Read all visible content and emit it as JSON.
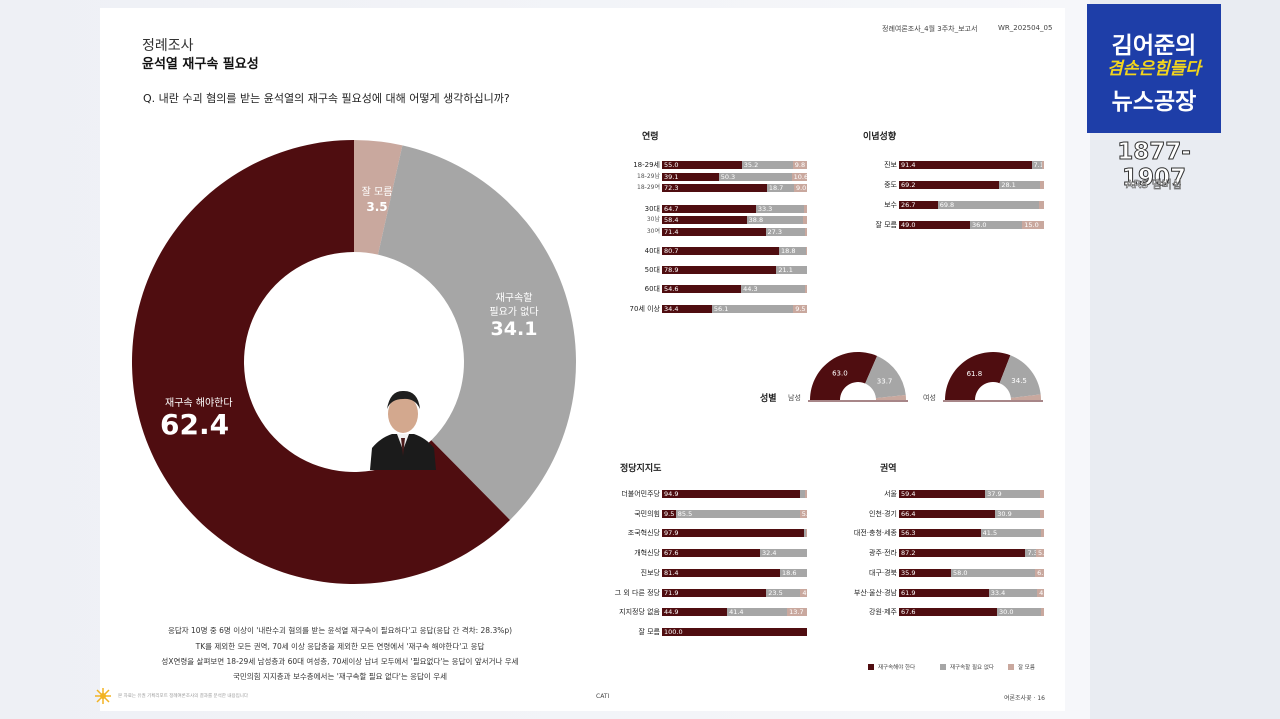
{
  "header": {
    "report_label": "정례여론조사_4월 3주차_보고서",
    "report_code": "WR_202504_05"
  },
  "title": {
    "kicker": "정례조사",
    "main": "윤석열 재구속 필요성"
  },
  "question": "Q. 내란 수괴 혐의를 받는 윤석열의 재구속 필요성에 대해 어떻게 생각하십니까?",
  "colors": {
    "yes": "#4f0d10",
    "no": "#a6a6a6",
    "unknown": "#c9a89e"
  },
  "chart_data": [
    {
      "type": "pie",
      "title": "윤석열 재구속 필요성",
      "slices": [
        {
          "label": "재구속 해야한다",
          "value": 62.4
        },
        {
          "label_line1": "재구속할",
          "label_line2": "필요가 없다",
          "value": 34.1
        },
        {
          "label": "잘 모름",
          "value": 3.5
        }
      ]
    },
    {
      "type": "bar",
      "stacked": true,
      "title": "연령",
      "rows": [
        {
          "label": "18-29세",
          "sub": false,
          "values": [
            55.0,
            35.2,
            9.8
          ]
        },
        {
          "label": "18-29남",
          "sub": true,
          "values": [
            39.1,
            50.3,
            10.6
          ]
        },
        {
          "label": "18-29여",
          "sub": true,
          "values": [
            72.3,
            18.7,
            9.0
          ]
        },
        {
          "label": "30대",
          "sub": false,
          "values": [
            64.7,
            33.3,
            2.0
          ]
        },
        {
          "label": "30남",
          "sub": true,
          "values": [
            58.4,
            38.8,
            2.8
          ]
        },
        {
          "label": "30여",
          "sub": true,
          "values": [
            71.4,
            27.3,
            1.3
          ]
        },
        {
          "label": "40대",
          "sub": false,
          "values": [
            80.7,
            18.8,
            0.5
          ]
        },
        {
          "label": "50대",
          "sub": false,
          "values": [
            78.9,
            21.1,
            0.0
          ]
        },
        {
          "label": "60대",
          "sub": false,
          "values": [
            54.6,
            44.3,
            1.1
          ]
        },
        {
          "label": "70세 이상",
          "sub": false,
          "values": [
            34.4,
            56.1,
            9.5
          ]
        }
      ]
    },
    {
      "type": "bar",
      "stacked": true,
      "title": "이념성향",
      "rows": [
        {
          "label": "진보",
          "values": [
            91.4,
            7.1,
            1.5
          ]
        },
        {
          "label": "중도",
          "values": [
            69.2,
            28.1,
            2.7
          ]
        },
        {
          "label": "보수",
          "values": [
            26.7,
            69.8,
            3.5
          ]
        },
        {
          "label": "잘 모름",
          "values": [
            49.0,
            36.0,
            15.0
          ]
        }
      ]
    },
    {
      "type": "pie",
      "title": "성별",
      "groups": [
        {
          "label": "남성",
          "values": [
            63.0,
            33.7,
            3.3
          ]
        },
        {
          "label": "여성",
          "values": [
            61.8,
            34.5,
            3.7
          ]
        }
      ]
    },
    {
      "type": "bar",
      "stacked": true,
      "title": "정당지지도",
      "rows": [
        {
          "label": "더불어민주당",
          "values": [
            94.9,
            3.5,
            1.6
          ]
        },
        {
          "label": "국민의힘",
          "values": [
            9.5,
            85.5,
            5.0
          ]
        },
        {
          "label": "조국혁신당",
          "values": [
            97.9,
            1.5,
            0.6
          ]
        },
        {
          "label": "개혁신당",
          "values": [
            67.6,
            32.4,
            0.0
          ]
        },
        {
          "label": "진보당",
          "values": [
            81.4,
            18.6,
            0.0
          ]
        },
        {
          "label": "그 외 다른 정당",
          "values": [
            71.9,
            23.5,
            4.6
          ]
        },
        {
          "label": "지지정당 없음",
          "values": [
            44.9,
            41.4,
            13.7
          ]
        },
        {
          "label": "잘 모름",
          "values": [
            100.0,
            0.0,
            0.0
          ]
        }
      ]
    },
    {
      "type": "bar",
      "stacked": true,
      "title": "권역",
      "rows": [
        {
          "label": "서울",
          "values": [
            59.4,
            37.9,
            2.7
          ]
        },
        {
          "label": "인천·경기",
          "values": [
            66.4,
            30.9,
            2.7
          ]
        },
        {
          "label": "대전·충청·세종",
          "values": [
            56.3,
            41.5,
            2.2
          ]
        },
        {
          "label": "광주·전라",
          "values": [
            87.2,
            7.3,
            5.5
          ]
        },
        {
          "label": "대구·경북",
          "values": [
            35.9,
            58.0,
            6.1
          ]
        },
        {
          "label": "부산·울산·경남",
          "values": [
            61.9,
            33.4,
            4.7
          ]
        },
        {
          "label": "강원·제주",
          "values": [
            67.6,
            30.0,
            2.4
          ]
        }
      ]
    }
  ],
  "legend": {
    "yes": "재구속해야 한다",
    "no": "재구속할 필요 없다",
    "unknown": "잘 모름"
  },
  "notes": [
    "응답자 10명 중 6명 이상이 '내란수괴 혐의를 받는 윤석열 재구속이 필요하다'고 응답(응답 간 격차: 28.3%p)",
    "TK를 제외한 모든 권역, 70세 이상 응답층을 제외한 모든 연령에서 '재구속 해야한다'고 응답",
    "성X연령을 살펴보면 18-29세 남성층과 60대 여성층, 70세이상 남녀 모두에서 '필요없다'는 응답이 앞서거나 우세",
    "국민의힘 지지층과 보수층에서는 '재구속할 필요 없다'는 응답이 우세"
  ],
  "footer": {
    "source": "본 자료는 유권 기획리포트 정례여론조사의 결과를 분석한 내용입니다",
    "method": "CATI",
    "page": "여론조사꽃 · 16"
  },
  "brand": {
    "line1": "김어준의",
    "line2": "겸손은힘들다",
    "line3": "뉴스공장",
    "phone": "1877-1907",
    "ars": "ARS 멤버십"
  }
}
